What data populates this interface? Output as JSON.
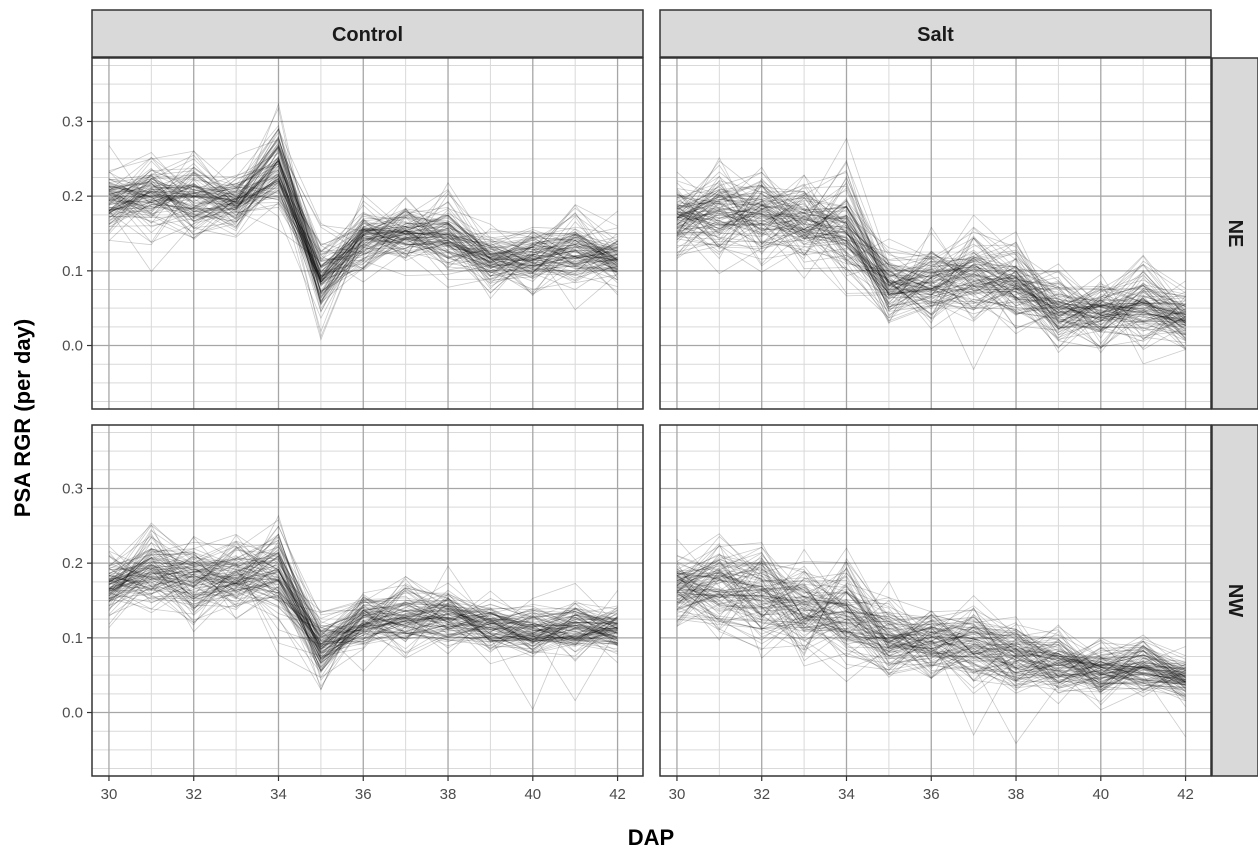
{
  "chart_data": {
    "type": "line",
    "title": "",
    "xlabel": "DAP",
    "ylabel": "PSA RGR (per day)",
    "x": [
      30,
      31,
      32,
      33,
      34,
      35,
      36,
      37,
      38,
      39,
      40,
      41,
      42
    ],
    "xlim": [
      29.6,
      42.6
    ],
    "ylim": [
      -0.085,
      0.385
    ],
    "x_ticks": [
      30,
      32,
      34,
      36,
      38,
      40,
      42
    ],
    "y_ticks": [
      0.0,
      0.1,
      0.2,
      0.3
    ],
    "y_tick_labels": [
      "0.0",
      "0.1",
      "0.2",
      "0.3"
    ],
    "grid": true,
    "facet_columns": [
      "Control",
      "Salt"
    ],
    "facet_rows": [
      "NE",
      "NW"
    ],
    "note_lines": "many thin semi-transparent lines (one per plant), summarized per panel by mean trajectory and spread",
    "panels": [
      {
        "col": "Control",
        "row": "NE",
        "mean": [
          0.19,
          0.2,
          0.195,
          0.19,
          0.23,
          0.09,
          0.14,
          0.15,
          0.145,
          0.11,
          0.115,
          0.125,
          0.115
        ],
        "spread": [
          0.022,
          0.025,
          0.025,
          0.02,
          0.03,
          0.025,
          0.02,
          0.02,
          0.022,
          0.02,
          0.02,
          0.022,
          0.018
        ]
      },
      {
        "col": "Salt",
        "row": "NE",
        "mean": [
          0.17,
          0.18,
          0.175,
          0.165,
          0.16,
          0.08,
          0.085,
          0.095,
          0.085,
          0.05,
          0.045,
          0.055,
          0.035
        ],
        "spread": [
          0.025,
          0.03,
          0.03,
          0.028,
          0.035,
          0.025,
          0.025,
          0.03,
          0.03,
          0.022,
          0.022,
          0.03,
          0.02
        ]
      },
      {
        "col": "Control",
        "row": "NW",
        "mean": [
          0.17,
          0.185,
          0.18,
          0.18,
          0.185,
          0.085,
          0.125,
          0.13,
          0.125,
          0.115,
          0.105,
          0.11,
          0.11
        ],
        "spread": [
          0.022,
          0.028,
          0.028,
          0.025,
          0.03,
          0.02,
          0.02,
          0.022,
          0.02,
          0.018,
          0.018,
          0.018,
          0.015
        ]
      },
      {
        "col": "Salt",
        "row": "NW",
        "mean": [
          0.17,
          0.165,
          0.155,
          0.14,
          0.135,
          0.1,
          0.095,
          0.09,
          0.075,
          0.065,
          0.055,
          0.06,
          0.045
        ],
        "spread": [
          0.025,
          0.035,
          0.035,
          0.035,
          0.035,
          0.025,
          0.025,
          0.025,
          0.022,
          0.02,
          0.018,
          0.02,
          0.015
        ]
      }
    ]
  },
  "colors": {
    "strip_fill": "#d9d9d9",
    "panel_border": "#333333",
    "grid_major": "#a6a6a6",
    "grid_minor": "#d9d9d9",
    "line": "#000000",
    "background": "#ffffff"
  }
}
